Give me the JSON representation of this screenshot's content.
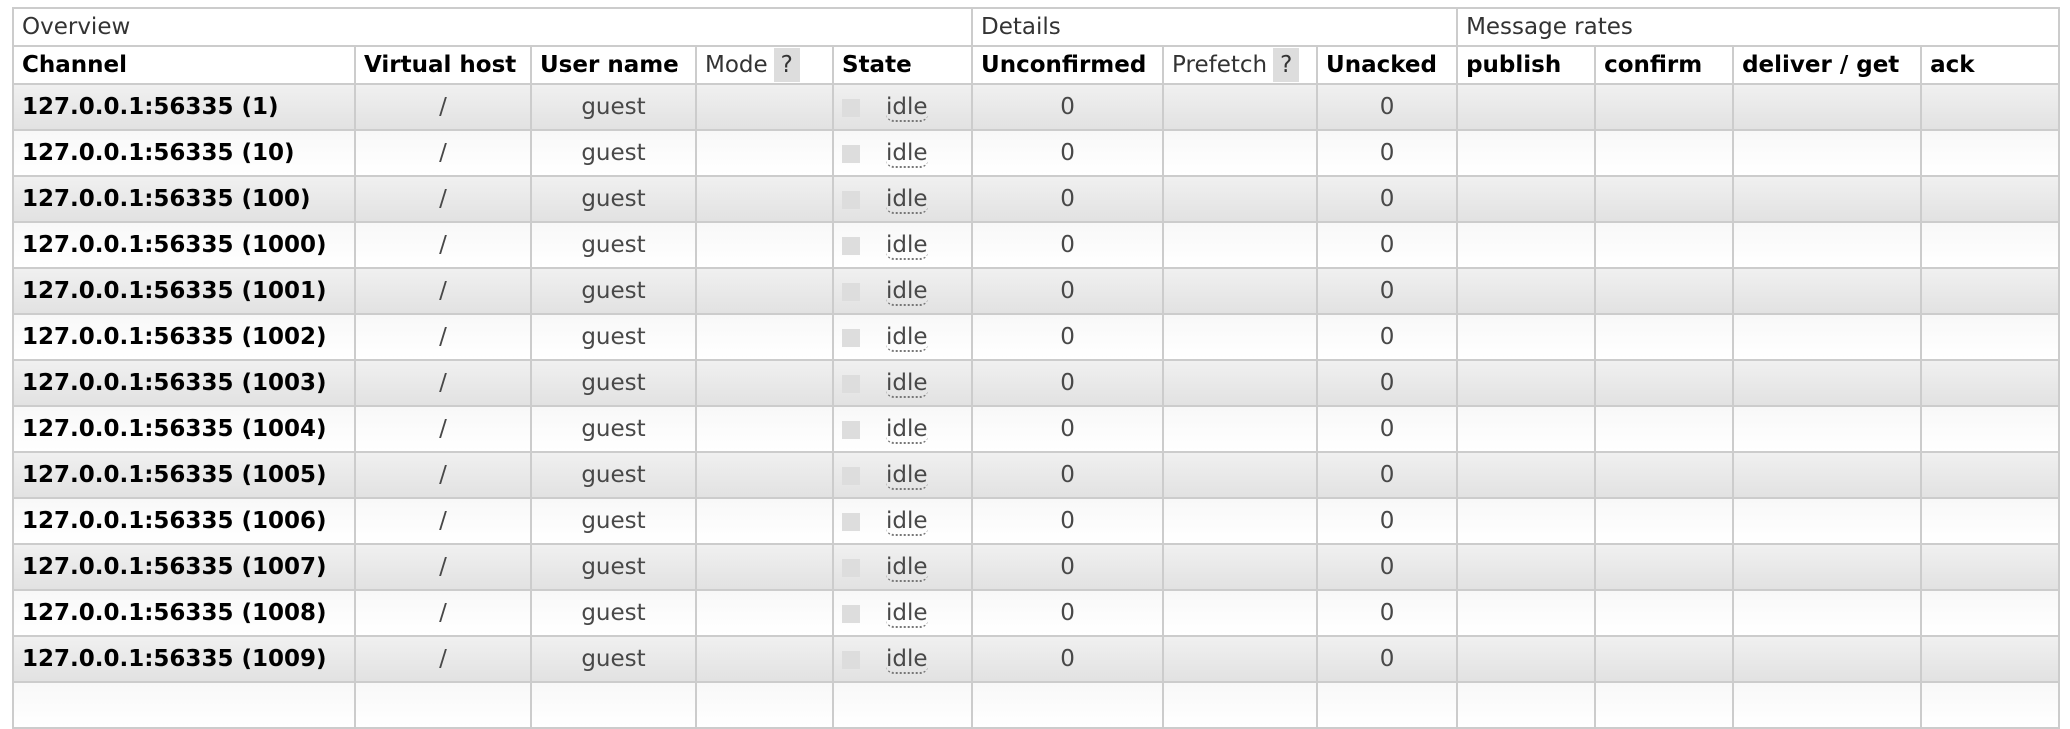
{
  "groups": [
    "Overview",
    "Details",
    "Message rates"
  ],
  "columns": {
    "channel": "Channel",
    "vhost": "Virtual host",
    "user": "User name",
    "mode": "Mode",
    "state": "State",
    "unconfirmed": "Unconfirmed",
    "prefetch": "Prefetch",
    "unacked": "Unacked",
    "publish": "publish",
    "confirm": "confirm",
    "deliver": "deliver / get",
    "ack": "ack",
    "help": "?"
  },
  "rows": [
    {
      "channel": "127.0.0.1:56335 (1)",
      "vhost": "/",
      "user": "guest",
      "state": "idle",
      "unconfirmed": "0",
      "unacked": "0"
    },
    {
      "channel": "127.0.0.1:56335 (10)",
      "vhost": "/",
      "user": "guest",
      "state": "idle",
      "unconfirmed": "0",
      "unacked": "0"
    },
    {
      "channel": "127.0.0.1:56335 (100)",
      "vhost": "/",
      "user": "guest",
      "state": "idle",
      "unconfirmed": "0",
      "unacked": "0"
    },
    {
      "channel": "127.0.0.1:56335 (1000)",
      "vhost": "/",
      "user": "guest",
      "state": "idle",
      "unconfirmed": "0",
      "unacked": "0"
    },
    {
      "channel": "127.0.0.1:56335 (1001)",
      "vhost": "/",
      "user": "guest",
      "state": "idle",
      "unconfirmed": "0",
      "unacked": "0"
    },
    {
      "channel": "127.0.0.1:56335 (1002)",
      "vhost": "/",
      "user": "guest",
      "state": "idle",
      "unconfirmed": "0",
      "unacked": "0"
    },
    {
      "channel": "127.0.0.1:56335 (1003)",
      "vhost": "/",
      "user": "guest",
      "state": "idle",
      "unconfirmed": "0",
      "unacked": "0"
    },
    {
      "channel": "127.0.0.1:56335 (1004)",
      "vhost": "/",
      "user": "guest",
      "state": "idle",
      "unconfirmed": "0",
      "unacked": "0"
    },
    {
      "channel": "127.0.0.1:56335 (1005)",
      "vhost": "/",
      "user": "guest",
      "state": "idle",
      "unconfirmed": "0",
      "unacked": "0"
    },
    {
      "channel": "127.0.0.1:56335 (1006)",
      "vhost": "/",
      "user": "guest",
      "state": "idle",
      "unconfirmed": "0",
      "unacked": "0"
    },
    {
      "channel": "127.0.0.1:56335 (1007)",
      "vhost": "/",
      "user": "guest",
      "state": "idle",
      "unconfirmed": "0",
      "unacked": "0"
    },
    {
      "channel": "127.0.0.1:56335 (1008)",
      "vhost": "/",
      "user": "guest",
      "state": "idle",
      "unconfirmed": "0",
      "unacked": "0"
    },
    {
      "channel": "127.0.0.1:56335 (1009)",
      "vhost": "/",
      "user": "guest",
      "state": "idle",
      "unconfirmed": "0",
      "unacked": "0"
    },
    {
      "channel": "",
      "vhost": "",
      "user": "",
      "state": "",
      "unconfirmed": "",
      "unacked": ""
    }
  ]
}
